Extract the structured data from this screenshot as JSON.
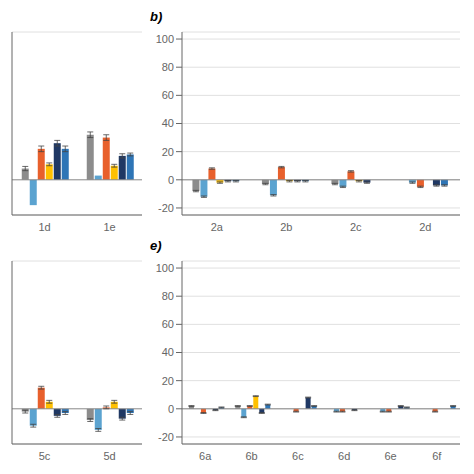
{
  "chart_data": [
    {
      "type": "bar",
      "categories": [
        "1d",
        "1e"
      ],
      "series": [
        {
          "color": "#8C8C8C",
          "values": [
            8,
            32
          ],
          "errors": [
            1.5,
            2
          ]
        },
        {
          "color": "#5BA3D0",
          "values": [
            -18,
            3
          ],
          "errors": [
            0,
            0
          ]
        },
        {
          "color": "#E8602C",
          "values": [
            22,
            30
          ],
          "errors": [
            2,
            2
          ]
        },
        {
          "color": "#FFC000",
          "values": [
            11,
            10
          ],
          "errors": [
            1,
            1
          ]
        },
        {
          "color": "#1F3864",
          "values": [
            26,
            17
          ],
          "errors": [
            2,
            1.5
          ]
        },
        {
          "color": "#2E75B6",
          "values": [
            22,
            18
          ],
          "errors": [
            2,
            1
          ]
        }
      ],
      "ylim": [
        -25,
        105
      ],
      "yticks": [
        -20,
        0,
        20,
        40,
        60,
        80,
        100
      ],
      "grid": true,
      "tick_labels": "x"
    },
    {
      "type": "bar",
      "title": "b)",
      "categories": [
        "2a",
        "2b",
        "2c",
        "2d"
      ],
      "series": [
        {
          "color": "#8C8C8C",
          "values": [
            -8,
            -3,
            -3,
            0
          ],
          "errors": [
            0.5,
            0.5,
            0.5,
            0.5
          ]
        },
        {
          "color": "#5BA3D0",
          "values": [
            -12,
            -11,
            -5,
            -2
          ],
          "errors": [
            0.5,
            0.5,
            0.5,
            0.5
          ]
        },
        {
          "color": "#E8602C",
          "values": [
            8,
            9,
            6,
            -5
          ],
          "errors": [
            0.5,
            0.5,
            0.5,
            0.5
          ]
        },
        {
          "color": "#FFC000",
          "values": [
            -2,
            -1,
            -1,
            0
          ],
          "errors": [
            0.5,
            0.5,
            0.5,
            0.5
          ]
        },
        {
          "color": "#1F3864",
          "values": [
            -1,
            -1,
            -2,
            -4
          ],
          "errors": [
            0.5,
            0.5,
            0.5,
            0.5
          ]
        },
        {
          "color": "#2E75B6",
          "values": [
            -1,
            -1,
            0,
            -4
          ],
          "errors": [
            0.5,
            0.5,
            0.5,
            0.5
          ]
        }
      ],
      "ylim": [
        -25,
        105
      ],
      "yticks": [
        -20,
        0,
        20,
        40,
        60,
        80,
        100
      ],
      "grid": true
    },
    {
      "type": "bar",
      "categories": [
        "5c",
        "5d"
      ],
      "series": [
        {
          "color": "#8C8C8C",
          "values": [
            -2,
            -8
          ],
          "errors": [
            1,
            1
          ]
        },
        {
          "color": "#5BA3D0",
          "values": [
            -12,
            -15
          ],
          "errors": [
            1,
            1
          ]
        },
        {
          "color": "#E8602C",
          "values": [
            15,
            1
          ],
          "errors": [
            1,
            1
          ]
        },
        {
          "color": "#FFC000",
          "values": [
            5,
            5
          ],
          "errors": [
            1,
            1
          ]
        },
        {
          "color": "#1F3864",
          "values": [
            -5,
            -7
          ],
          "errors": [
            1,
            1
          ]
        },
        {
          "color": "#2E75B6",
          "values": [
            -3,
            -3
          ],
          "errors": [
            1,
            1
          ]
        }
      ],
      "ylim": [
        -25,
        105
      ],
      "yticks": [
        -20,
        0,
        20,
        40,
        60,
        80,
        100
      ],
      "grid": true,
      "tick_labels": "x"
    },
    {
      "type": "bar",
      "title": "e)",
      "categories": [
        "6a",
        "6b",
        "6c",
        "6d",
        "6e",
        "6f"
      ],
      "series": [
        {
          "color": "#8C8C8C",
          "values": [
            2,
            2,
            0,
            0,
            0,
            0
          ],
          "errors": [
            0.3,
            0.3,
            0.3,
            0.3,
            0.3,
            0.3
          ]
        },
        {
          "color": "#5BA3D0",
          "values": [
            0,
            -6,
            0,
            -2,
            -2,
            0
          ],
          "errors": [
            0.3,
            0.3,
            0.3,
            0.3,
            0.3,
            0.3
          ]
        },
        {
          "color": "#E8602C",
          "values": [
            -3,
            2,
            -2,
            -2,
            -2,
            -2
          ],
          "errors": [
            0.3,
            0.3,
            0.3,
            0.3,
            0.3,
            0.3
          ]
        },
        {
          "color": "#FFC000",
          "values": [
            0,
            9,
            0,
            0,
            0,
            0
          ],
          "errors": [
            0.3,
            0.3,
            0.3,
            0.3,
            0.3,
            0.3
          ]
        },
        {
          "color": "#1F3864",
          "values": [
            -1,
            -3,
            8,
            -1,
            2,
            0
          ],
          "errors": [
            0.3,
            0.3,
            0.3,
            0.3,
            0.3,
            0.3
          ]
        },
        {
          "color": "#2E75B6",
          "values": [
            1,
            3,
            2,
            0,
            1,
            2
          ],
          "errors": [
            0.3,
            0.3,
            0.3,
            0.3,
            0.3,
            0.3
          ]
        }
      ],
      "ylim": [
        -25,
        105
      ],
      "yticks": [
        -20,
        0,
        20,
        40,
        60,
        80,
        100
      ],
      "grid": true
    }
  ]
}
